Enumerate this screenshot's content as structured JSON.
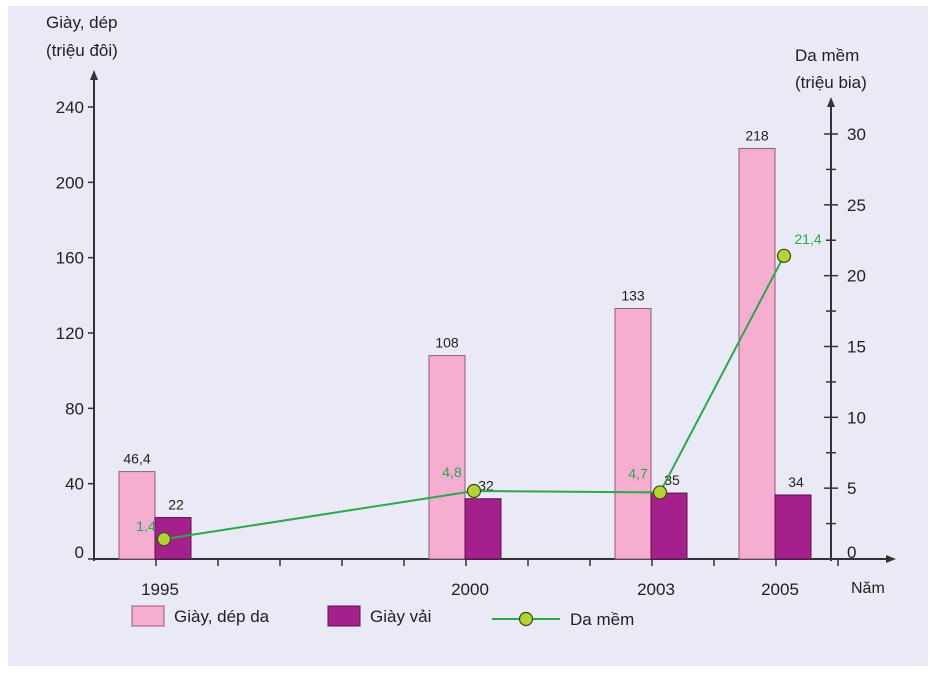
{
  "chart_data": {
    "type": "bar+line",
    "x_unit_label": "Năm",
    "categories": [
      "1995",
      "2000",
      "2003",
      "2005"
    ],
    "left_axis": {
      "label_line1": "Giày, dép",
      "label_line2": "(triệu đôi)",
      "ylim": [
        0,
        240
      ],
      "ticks": [
        "0",
        "40",
        "80",
        "120",
        "160",
        "200",
        "240"
      ]
    },
    "right_axis": {
      "label_line1": "Da mềm",
      "label_line2": "(triệu bia)",
      "ylim": [
        0,
        30
      ],
      "ticks": [
        "0",
        "5",
        "10",
        "15",
        "20",
        "25",
        "30"
      ]
    },
    "series": [
      {
        "name": "Giày, dép da",
        "kind": "bar",
        "axis": "left",
        "color": "#f6aed0",
        "values": [
          46.4,
          108,
          133,
          218
        ],
        "labels": [
          "46,4",
          "108",
          "133",
          "218"
        ]
      },
      {
        "name": "Giày vải",
        "kind": "bar",
        "axis": "left",
        "color": "#a4208a",
        "values": [
          22,
          32,
          35,
          34
        ],
        "labels": [
          "22",
          "32",
          "35",
          "34"
        ]
      },
      {
        "name": "Da mềm",
        "kind": "line",
        "axis": "right",
        "color": "#2aa84a",
        "marker_color": "#b5d334",
        "values": [
          1.4,
          4.8,
          4.7,
          21.4
        ],
        "labels": [
          "1,4",
          "4,8",
          "4,7",
          "21,4"
        ]
      }
    ],
    "grid": false,
    "legend_position": "bottom"
  }
}
